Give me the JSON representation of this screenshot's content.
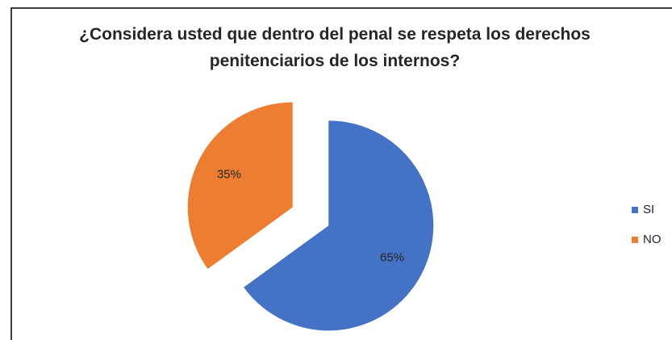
{
  "chart_data": {
    "type": "pie",
    "title": "¿Considera usted que dentro del penal se respeta los derechos penitenciarios de los internos?",
    "categories": [
      "SI",
      "NO"
    ],
    "values": [
      65,
      35
    ],
    "value_labels": [
      "65%",
      "35%"
    ],
    "colors": [
      "#4472c4",
      "#ed7d31"
    ],
    "exploded": true,
    "legend": "right"
  }
}
